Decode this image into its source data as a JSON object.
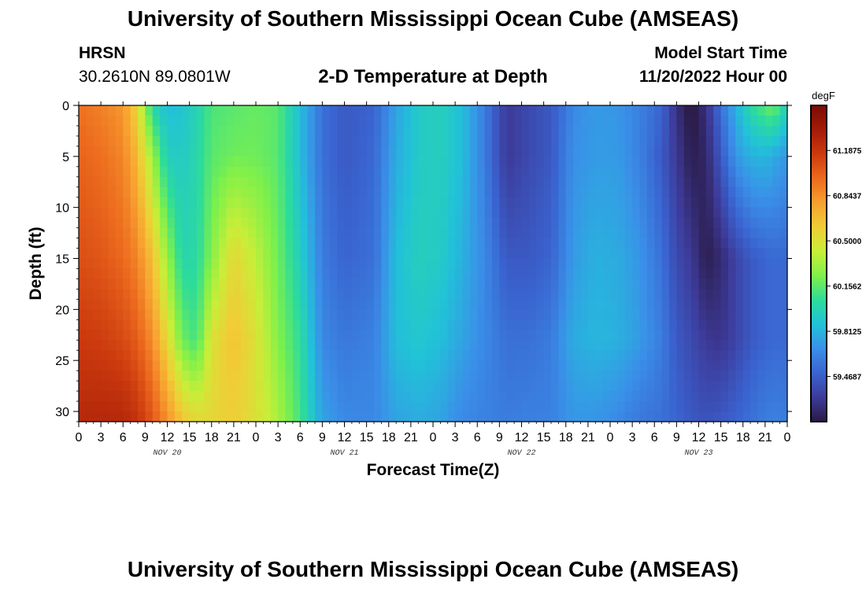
{
  "header": {
    "title": "University of Southern Mississippi Ocean Cube (AMSEAS)",
    "station": "HRSN",
    "coords": "30.2610N  89.0801W",
    "subtitle": "2-D Temperature at Depth",
    "model_start_label": "Model Start Time",
    "model_start_value": "11/20/2022 Hour 00"
  },
  "footer": {
    "title": "University of Southern Mississippi Ocean Cube (AMSEAS)"
  },
  "chart_data": {
    "type": "heatmap",
    "title": "2-D Temperature at Depth",
    "xlabel": "Forecast Time(Z)",
    "ylabel": "Depth (ft)",
    "x_tick_labels": [
      "0",
      "3",
      "6",
      "9",
      "12",
      "15",
      "18",
      "21",
      "0",
      "3",
      "6",
      "9",
      "12",
      "15",
      "18",
      "21",
      "0",
      "3",
      "6",
      "9",
      "12",
      "15",
      "18",
      "21",
      "0",
      "3",
      "6",
      "9",
      "12",
      "15",
      "18",
      "21",
      "0"
    ],
    "x_range_hours": [
      0,
      96
    ],
    "day_labels": [
      {
        "label": "NOV 20",
        "hour": 12
      },
      {
        "label": "NOV 21",
        "hour": 36
      },
      {
        "label": "NOV 22",
        "hour": 60
      },
      {
        "label": "NOV 23",
        "hour": 84
      }
    ],
    "y_tick_labels": [
      "0",
      "5",
      "10",
      "15",
      "20",
      "25",
      "30"
    ],
    "y_tick_values": [
      0,
      5,
      10,
      15,
      20,
      25,
      30
    ],
    "y_range_ft": [
      0,
      31
    ],
    "y_inverted": true,
    "colorbar": {
      "unit": "degF",
      "tick_labels": [
        "61.1875",
        "60.8437",
        "60.5000",
        "60.1562",
        "59.8125",
        "59.4687"
      ],
      "tick_values": [
        61.1875,
        60.84375,
        60.5,
        60.15625,
        59.8125,
        59.46875
      ],
      "range": [
        59.125,
        61.53
      ],
      "colors": [
        "#2a1a44",
        "#3d3b9a",
        "#3a63d0",
        "#3a90e8",
        "#21c2d8",
        "#2ddc9a",
        "#7ff04a",
        "#c8ee38",
        "#f0cd36",
        "#f8a030",
        "#ec6a1e",
        "#cc3a0e",
        "#a31c08",
        "#7a0c04"
      ]
    },
    "grid_step": {
      "x_hours": 1,
      "y_ft": 1
    },
    "profiles": [
      {
        "hour": 0,
        "values": [
          60.95,
          61.0,
          61.08,
          61.17,
          61.26
        ]
      },
      {
        "hour": 3,
        "values": [
          60.9,
          60.96,
          61.05,
          61.15,
          61.27
        ]
      },
      {
        "hour": 6,
        "values": [
          60.82,
          60.88,
          60.98,
          61.1,
          61.27
        ]
      },
      {
        "hour": 8,
        "values": [
          60.55,
          60.68,
          60.88,
          61.02,
          61.2
        ]
      },
      {
        "hour": 10,
        "values": [
          60.0,
          60.3,
          60.65,
          60.85,
          61.05
        ]
      },
      {
        "hour": 12,
        "values": [
          59.85,
          59.95,
          60.3,
          60.55,
          60.85
        ]
      },
      {
        "hour": 14,
        "values": [
          59.88,
          59.92,
          60.0,
          60.2,
          60.65
        ]
      },
      {
        "hour": 16,
        "values": [
          59.98,
          60.0,
          60.02,
          60.1,
          60.55
        ]
      },
      {
        "hour": 18,
        "values": [
          60.12,
          60.15,
          60.25,
          60.5,
          60.55
        ]
      },
      {
        "hour": 21,
        "values": [
          60.15,
          60.2,
          60.55,
          60.65,
          60.6
        ]
      },
      {
        "hour": 24,
        "values": [
          60.18,
          60.2,
          60.4,
          60.5,
          60.5
        ]
      },
      {
        "hour": 27,
        "values": [
          60.15,
          60.15,
          60.2,
          60.25,
          60.35
        ]
      },
      {
        "hour": 30,
        "values": [
          59.85,
          59.85,
          59.95,
          60.05,
          60.1
        ]
      },
      {
        "hour": 33,
        "values": [
          59.55,
          59.55,
          59.6,
          59.65,
          59.75
        ]
      },
      {
        "hour": 36,
        "values": [
          59.45,
          59.45,
          59.5,
          59.58,
          59.65
        ]
      },
      {
        "hour": 40,
        "values": [
          59.5,
          59.52,
          59.55,
          59.62,
          59.65
        ]
      },
      {
        "hour": 43,
        "values": [
          59.75,
          59.78,
          59.85,
          59.85,
          59.75
        ]
      },
      {
        "hour": 46,
        "values": [
          59.92,
          59.92,
          59.95,
          59.9,
          59.78
        ]
      },
      {
        "hour": 49,
        "values": [
          59.95,
          59.95,
          59.92,
          59.85,
          59.75
        ]
      },
      {
        "hour": 52,
        "values": [
          59.85,
          59.85,
          59.8,
          59.75,
          59.65
        ]
      },
      {
        "hour": 55,
        "values": [
          59.6,
          59.6,
          59.65,
          59.65,
          59.62
        ]
      },
      {
        "hour": 58,
        "values": [
          59.3,
          59.3,
          59.45,
          59.55,
          59.6
        ]
      },
      {
        "hour": 61,
        "values": [
          59.38,
          59.38,
          59.45,
          59.55,
          59.62
        ]
      },
      {
        "hour": 64,
        "values": [
          59.45,
          59.45,
          59.5,
          59.6,
          59.62
        ]
      },
      {
        "hour": 67,
        "values": [
          59.65,
          59.68,
          59.72,
          59.78,
          59.7
        ]
      },
      {
        "hour": 70,
        "values": [
          59.72,
          59.72,
          59.8,
          59.82,
          59.7
        ]
      },
      {
        "hour": 73,
        "values": [
          59.7,
          59.72,
          59.78,
          59.8,
          59.65
        ]
      },
      {
        "hour": 76,
        "values": [
          59.62,
          59.62,
          59.7,
          59.72,
          59.58
        ]
      },
      {
        "hour": 79,
        "values": [
          59.5,
          59.45,
          59.55,
          59.6,
          59.55
        ]
      },
      {
        "hour": 81,
        "values": [
          59.25,
          59.3,
          59.38,
          59.45,
          59.5
        ]
      },
      {
        "hour": 83,
        "values": [
          59.1,
          59.15,
          59.3,
          59.38,
          59.45
        ]
      },
      {
        "hour": 85,
        "values": [
          59.25,
          59.2,
          59.15,
          59.3,
          59.42
        ]
      },
      {
        "hour": 87,
        "values": [
          59.55,
          59.45,
          59.22,
          59.28,
          59.45
        ]
      },
      {
        "hour": 89,
        "values": [
          59.8,
          59.7,
          59.35,
          59.35,
          59.5
        ]
      },
      {
        "hour": 91,
        "values": [
          60.02,
          59.8,
          59.45,
          59.45,
          59.55
        ]
      },
      {
        "hour": 93,
        "values": [
          60.15,
          59.82,
          59.5,
          59.5,
          59.6
        ]
      },
      {
        "hour": 94,
        "values": [
          60.22,
          59.78,
          59.52,
          59.52,
          59.62
        ]
      },
      {
        "hour": 96,
        "values": [
          59.95,
          59.7,
          59.52,
          59.52,
          59.6
        ]
      }
    ],
    "profile_depths_ft": [
      0,
      5,
      15,
      23,
      31
    ]
  }
}
